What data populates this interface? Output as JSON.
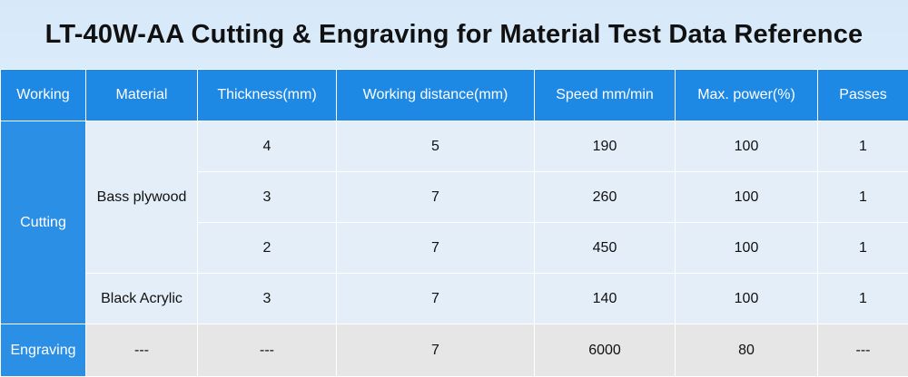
{
  "title": "LT-40W-AA Cutting & Engraving for Material Test Data Reference",
  "headers": [
    "Working",
    "Material",
    "Thickness(mm)",
    "Working distance(mm)",
    "Speed mm/min",
    "Max. power(%)",
    "Passes"
  ],
  "cutting": {
    "label": "Cutting",
    "bass_plywood": {
      "label": "Bass plywood",
      "rows": [
        {
          "thickness": "4",
          "distance": "5",
          "speed": "190",
          "power": "100",
          "passes": "1"
        },
        {
          "thickness": "3",
          "distance": "7",
          "speed": "260",
          "power": "100",
          "passes": "1"
        },
        {
          "thickness": "2",
          "distance": "7",
          "speed": "450",
          "power": "100",
          "passes": "1"
        }
      ]
    },
    "black_acrylic": {
      "label": "Black Acrylic",
      "row": {
        "thickness": "3",
        "distance": "7",
        "speed": "140",
        "power": "100",
        "passes": "1"
      }
    }
  },
  "engraving": {
    "label": "Engraving",
    "material": "---",
    "thickness": "---",
    "distance": "7",
    "speed": "6000",
    "power": "80",
    "passes": "---"
  }
}
